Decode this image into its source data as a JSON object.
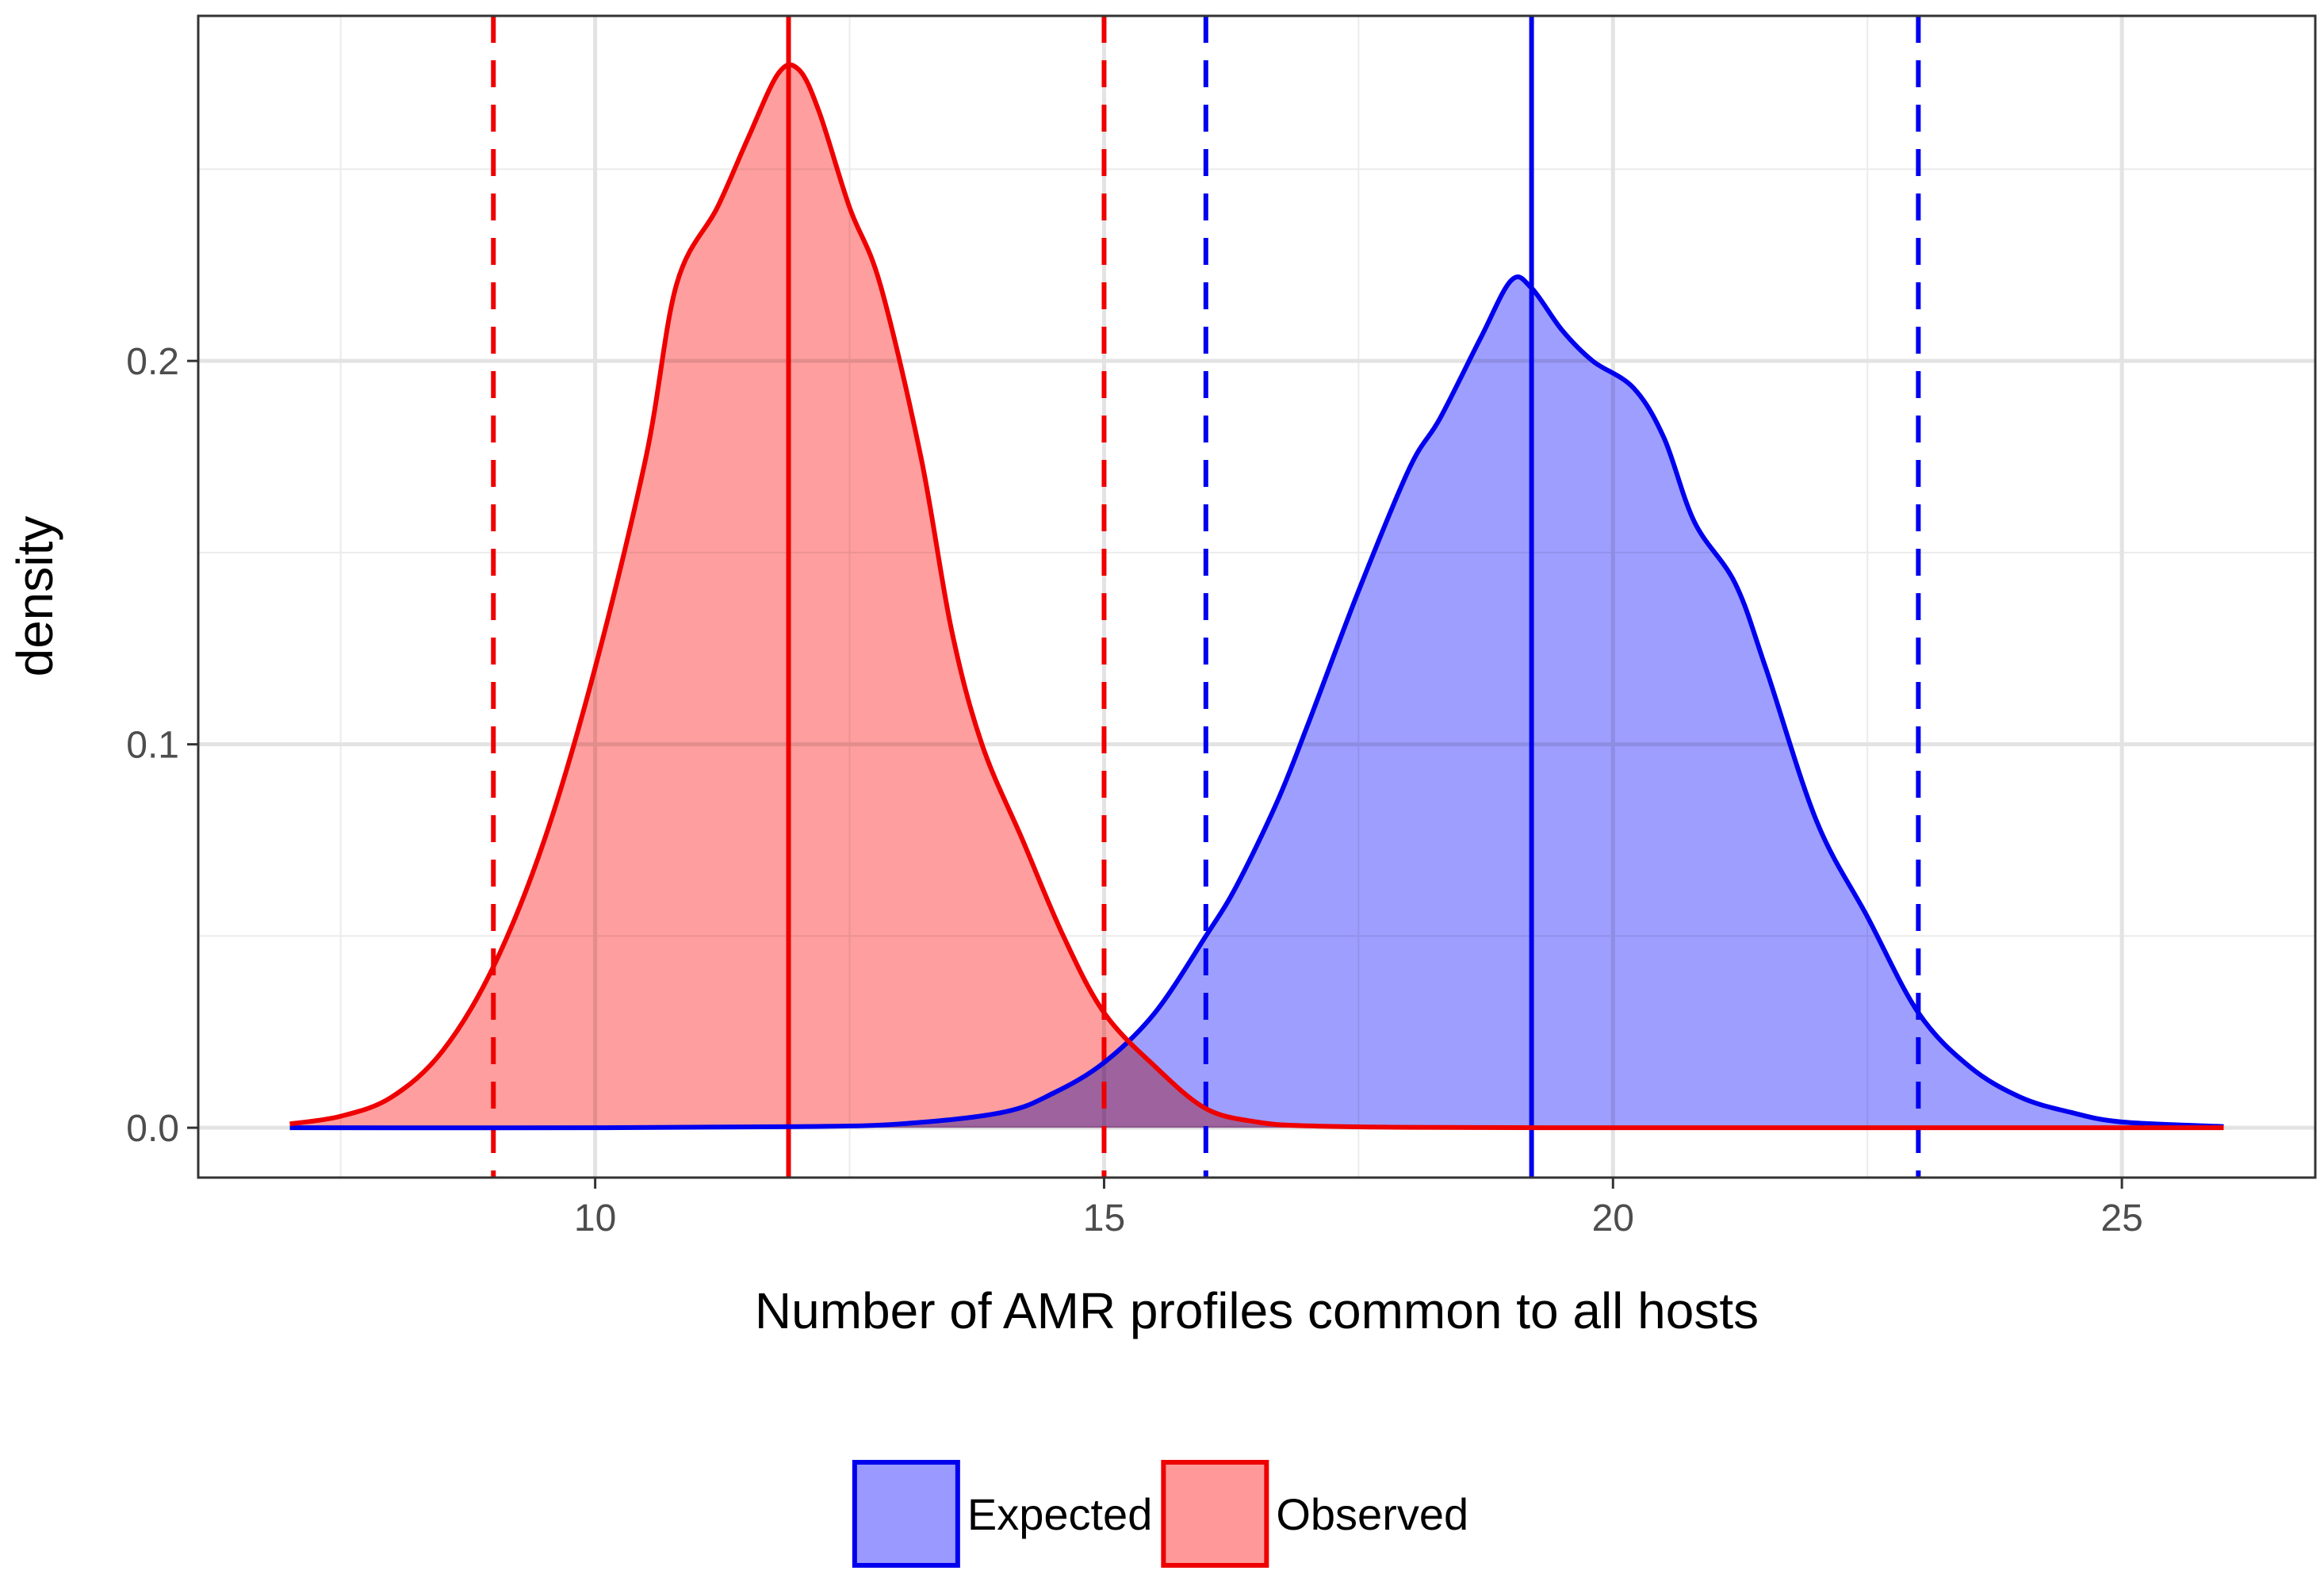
{
  "chart_data": {
    "type": "area",
    "title": "",
    "xlabel": "Number of AMR profiles common to all hosts",
    "ylabel": "density",
    "xlim": [
      6.1,
      26.9
    ],
    "ylim": [
      -0.013,
      0.29
    ],
    "x_ticks": [
      10,
      15,
      20,
      25
    ],
    "x_tick_labels": [
      "10",
      "15",
      "20",
      "25"
    ],
    "y_ticks": [
      0.0,
      0.1,
      0.2
    ],
    "y_tick_labels": [
      "0.0",
      "0.1",
      "0.2"
    ],
    "grid": true,
    "legend_position": "bottom",
    "series": [
      {
        "name": "Expected",
        "line_color": "#0000ee",
        "fill_color": "#9999ff",
        "mean": 19.2,
        "interval": [
          16,
          23
        ],
        "x": [
          7,
          10,
          12,
          13,
          14,
          14.5,
          15,
          15.5,
          16,
          16.3,
          16.7,
          17,
          17.5,
          18,
          18.3,
          18.7,
          19,
          19.2,
          19.5,
          19.8,
          20.2,
          20.5,
          20.8,
          21.2,
          21.5,
          22,
          22.5,
          23,
          23.5,
          24,
          24.5,
          25,
          26
        ],
        "y": [
          0,
          0,
          0.0003,
          0.001,
          0.004,
          0.009,
          0.017,
          0.03,
          0.05,
          0.063,
          0.085,
          0.105,
          0.14,
          0.172,
          0.185,
          0.206,
          0.221,
          0.219,
          0.208,
          0.2,
          0.193,
          0.18,
          0.158,
          0.142,
          0.12,
          0.08,
          0.055,
          0.03,
          0.016,
          0.008,
          0.004,
          0.0015,
          0.0003
        ]
      },
      {
        "name": "Observed",
        "line_color": "#ee0000",
        "fill_color": "#ff9999",
        "mean": 11.9,
        "interval": [
          9,
          15
        ],
        "x": [
          7,
          7.5,
          8,
          8.5,
          9,
          9.5,
          10,
          10.5,
          10.8,
          11.2,
          11.5,
          11.8,
          12,
          12.2,
          12.5,
          12.8,
          13.2,
          13.5,
          13.8,
          14.2,
          14.6,
          15,
          15.5,
          16,
          16.5,
          17,
          18,
          20,
          22,
          24,
          26
        ],
        "y": [
          0.001,
          0.003,
          0.008,
          0.02,
          0.042,
          0.075,
          0.12,
          0.175,
          0.22,
          0.24,
          0.258,
          0.275,
          0.276,
          0.265,
          0.24,
          0.22,
          0.175,
          0.13,
          0.1,
          0.075,
          0.05,
          0.03,
          0.016,
          0.005,
          0.0015,
          0.0005,
          0.0001,
          0,
          0,
          0,
          0
        ]
      }
    ],
    "legend": [
      {
        "label": "Expected",
        "fill": "#9999ff",
        "stroke": "#0000ee"
      },
      {
        "label": "Observed",
        "fill": "#ff9999",
        "stroke": "#ee0000"
      }
    ]
  }
}
